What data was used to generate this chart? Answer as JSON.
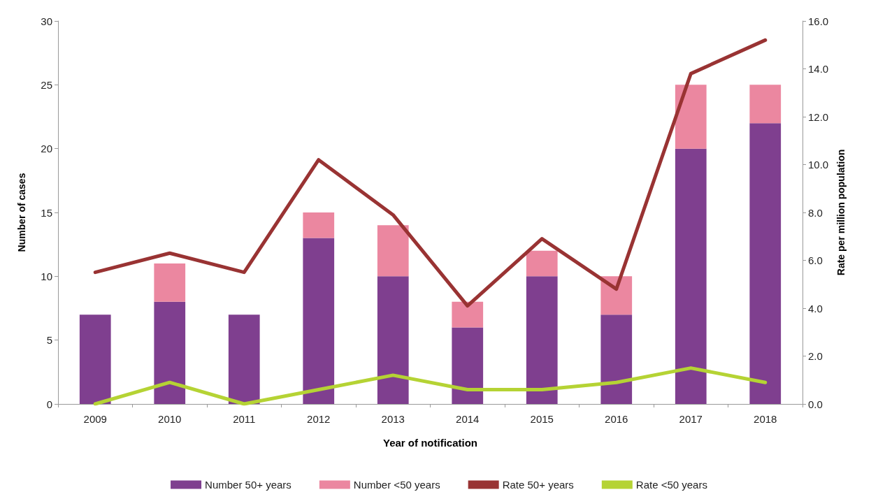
{
  "chart_data": {
    "type": "bar",
    "stacked": true,
    "xlabel": "Year of notification",
    "ylabel": "Number of cases",
    "y2label": "Rate per million population",
    "categories": [
      "2009",
      "2010",
      "2011",
      "2012",
      "2013",
      "2014",
      "2015",
      "2016",
      "2017",
      "2018"
    ],
    "series": [
      {
        "name": "Number 50+ years",
        "color": "#7f3f8f",
        "values": [
          7,
          8,
          7,
          13,
          10,
          6,
          10,
          7,
          20,
          22
        ]
      },
      {
        "name": "Number <50 years",
        "color": "#eb87a0",
        "values": [
          0,
          3,
          0,
          2,
          4,
          2,
          2,
          3,
          5,
          3
        ]
      },
      {
        "name": "Rate 50+ years",
        "type": "line",
        "axis": "y2",
        "color": "#993333",
        "values": [
          5.5,
          6.3,
          5.5,
          10.2,
          7.9,
          4.1,
          6.9,
          4.8,
          13.8,
          15.2
        ]
      },
      {
        "name": "Rate <50 years",
        "type": "line",
        "axis": "y2",
        "color": "#b5d334",
        "values": [
          0,
          0.9,
          0,
          0.6,
          1.2,
          0.6,
          0.6,
          0.9,
          1.5,
          0.9
        ]
      }
    ],
    "ylim": [
      0,
      30
    ],
    "yticks": [
      0,
      5,
      10,
      15,
      20,
      25,
      30
    ],
    "y2lim": [
      0,
      16
    ],
    "y2ticks": [
      {
        "value": 0,
        "label": "0.0"
      },
      {
        "value": 2,
        "label": "2.0"
      },
      {
        "value": 4,
        "label": "4.0"
      },
      {
        "value": 6,
        "label": "6.0"
      },
      {
        "value": 8,
        "label": "8.0"
      },
      {
        "value": 10,
        "label": "10.0"
      },
      {
        "value": 12,
        "label": "12.0"
      },
      {
        "value": 14,
        "label": "14.0"
      },
      {
        "value": 16,
        "label": "16.0"
      }
    ],
    "grid": false,
    "legend": "bottom",
    "marker": "none",
    "line_style": "solid"
  }
}
